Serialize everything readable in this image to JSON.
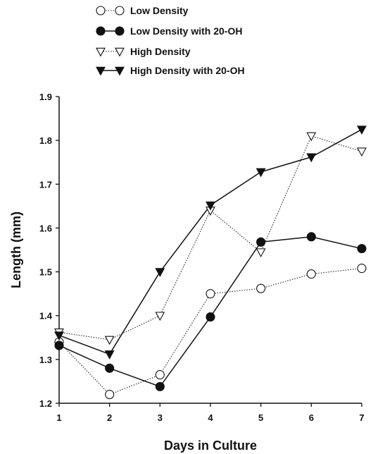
{
  "chart_data": {
    "type": "line",
    "title": "",
    "xlabel": "Days in Culture",
    "ylabel": "Length (mm)",
    "x": [
      1,
      2,
      3,
      4,
      5,
      6,
      7
    ],
    "xlim": [
      1,
      7
    ],
    "ylim": [
      1.2,
      1.9
    ],
    "xticks": [
      "1",
      "2",
      "3",
      "4",
      "5",
      "6",
      "7"
    ],
    "yticks": [
      "1.2",
      "1.3",
      "1.4",
      "1.5",
      "1.6",
      "1.7",
      "1.8",
      "1.9"
    ],
    "grid": false,
    "legend_position": "top-left",
    "series": [
      {
        "name": "Low Density",
        "marker": "circle-open",
        "line": "dotted",
        "color": "#222222",
        "values": [
          1.34,
          1.22,
          1.265,
          1.45,
          1.462,
          1.495,
          1.508
        ]
      },
      {
        "name": "Low Density with 20-OH",
        "marker": "circle-filled",
        "line": "solid",
        "color": "#111111",
        "values": [
          1.332,
          1.28,
          1.238,
          1.397,
          1.568,
          1.58,
          1.553
        ]
      },
      {
        "name": "High Density",
        "marker": "triangle-open",
        "line": "dotted",
        "color": "#222222",
        "values": [
          1.362,
          1.345,
          1.4,
          1.64,
          1.545,
          1.81,
          1.775
        ]
      },
      {
        "name": "High Density with 20-OH",
        "marker": "triangle-filled",
        "line": "solid",
        "color": "#111111",
        "values": [
          1.355,
          1.312,
          1.5,
          1.652,
          1.728,
          1.762,
          1.825
        ]
      }
    ]
  }
}
